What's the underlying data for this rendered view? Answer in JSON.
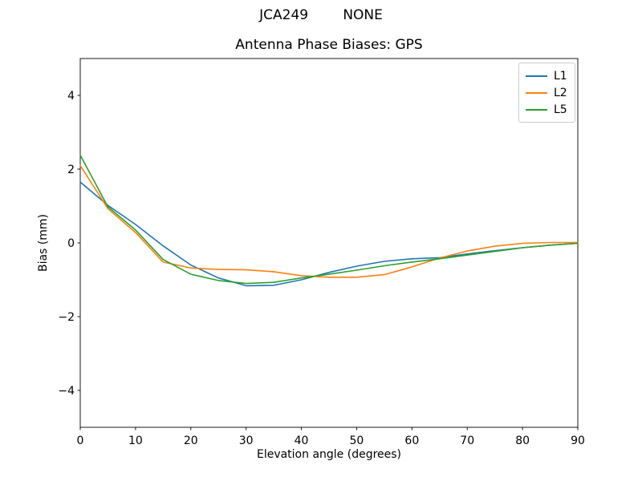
{
  "figure": {
    "suptitle": "JCA249        NONE",
    "background_color": "#ffffff"
  },
  "chart_data": {
    "type": "line",
    "suptitle": "JCA249        NONE",
    "title": "Antenna Phase Biases: GPS",
    "xlabel": "Elevation angle (degrees)",
    "ylabel": "Bias (mm)",
    "xlim": [
      0,
      90
    ],
    "ylim": [
      -5,
      5
    ],
    "xticks": [
      0,
      10,
      20,
      30,
      40,
      50,
      60,
      70,
      80,
      90
    ],
    "xtick_labels": [
      "0",
      "10",
      "20",
      "30",
      "40",
      "50",
      "60",
      "70",
      "80",
      "90"
    ],
    "yticks": [
      -4,
      -2,
      0,
      2,
      4
    ],
    "ytick_labels": [
      "−4",
      "−2",
      "0",
      "2",
      "4"
    ],
    "grid": false,
    "legend_position": "upper right",
    "axes_color": "#000000",
    "x": [
      0,
      5,
      10,
      15,
      20,
      25,
      30,
      35,
      40,
      45,
      50,
      55,
      60,
      65,
      70,
      75,
      80,
      85,
      90
    ],
    "series": [
      {
        "name": "L1",
        "color": "#1f77b4",
        "values": [
          1.65,
          1.02,
          0.5,
          -0.08,
          -0.6,
          -0.95,
          -1.16,
          -1.15,
          -1.0,
          -0.8,
          -0.63,
          -0.5,
          -0.43,
          -0.4,
          -0.3,
          -0.21,
          -0.13,
          -0.06,
          -0.01
        ]
      },
      {
        "name": "L2",
        "color": "#ff7f0e",
        "values": [
          2.1,
          0.93,
          0.28,
          -0.52,
          -0.68,
          -0.72,
          -0.73,
          -0.78,
          -0.89,
          -0.93,
          -0.93,
          -0.86,
          -0.65,
          -0.41,
          -0.22,
          -0.09,
          -0.01,
          0.01,
          0.01
        ]
      },
      {
        "name": "L5",
        "color": "#2ca02c",
        "values": [
          2.38,
          0.98,
          0.35,
          -0.45,
          -0.85,
          -1.02,
          -1.1,
          -1.07,
          -0.95,
          -0.85,
          -0.74,
          -0.62,
          -0.52,
          -0.43,
          -0.33,
          -0.23,
          -0.13,
          -0.06,
          -0.01
        ]
      }
    ]
  }
}
